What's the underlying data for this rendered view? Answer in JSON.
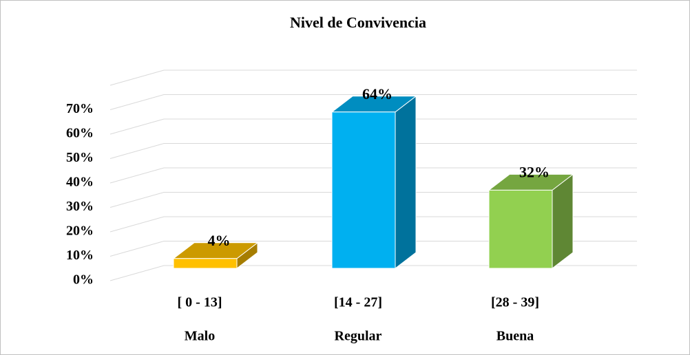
{
  "chart_data": {
    "type": "bar3d",
    "title": "Nivel de Convivencia",
    "categories": [
      "[ 0 - 13]",
      "[14 - 27]",
      "[28 - 39]"
    ],
    "levels": [
      "Malo",
      "Regular",
      "Buena"
    ],
    "values": [
      4,
      64,
      32
    ],
    "value_labels": [
      "4%",
      "64%",
      "32%"
    ],
    "colors": [
      "#FFC000",
      "#00B0F0",
      "#92D050"
    ],
    "ylim": [
      0,
      80
    ],
    "yticks": [
      {
        "value": 0,
        "label": "0%"
      },
      {
        "value": 10,
        "label": "10%"
      },
      {
        "value": 20,
        "label": "20%"
      },
      {
        "value": 30,
        "label": "30%"
      },
      {
        "value": 40,
        "label": "40%"
      },
      {
        "value": 50,
        "label": "50%"
      },
      {
        "value": 60,
        "label": "60%"
      },
      {
        "value": 70,
        "label": "70%"
      }
    ],
    "grid": true
  }
}
